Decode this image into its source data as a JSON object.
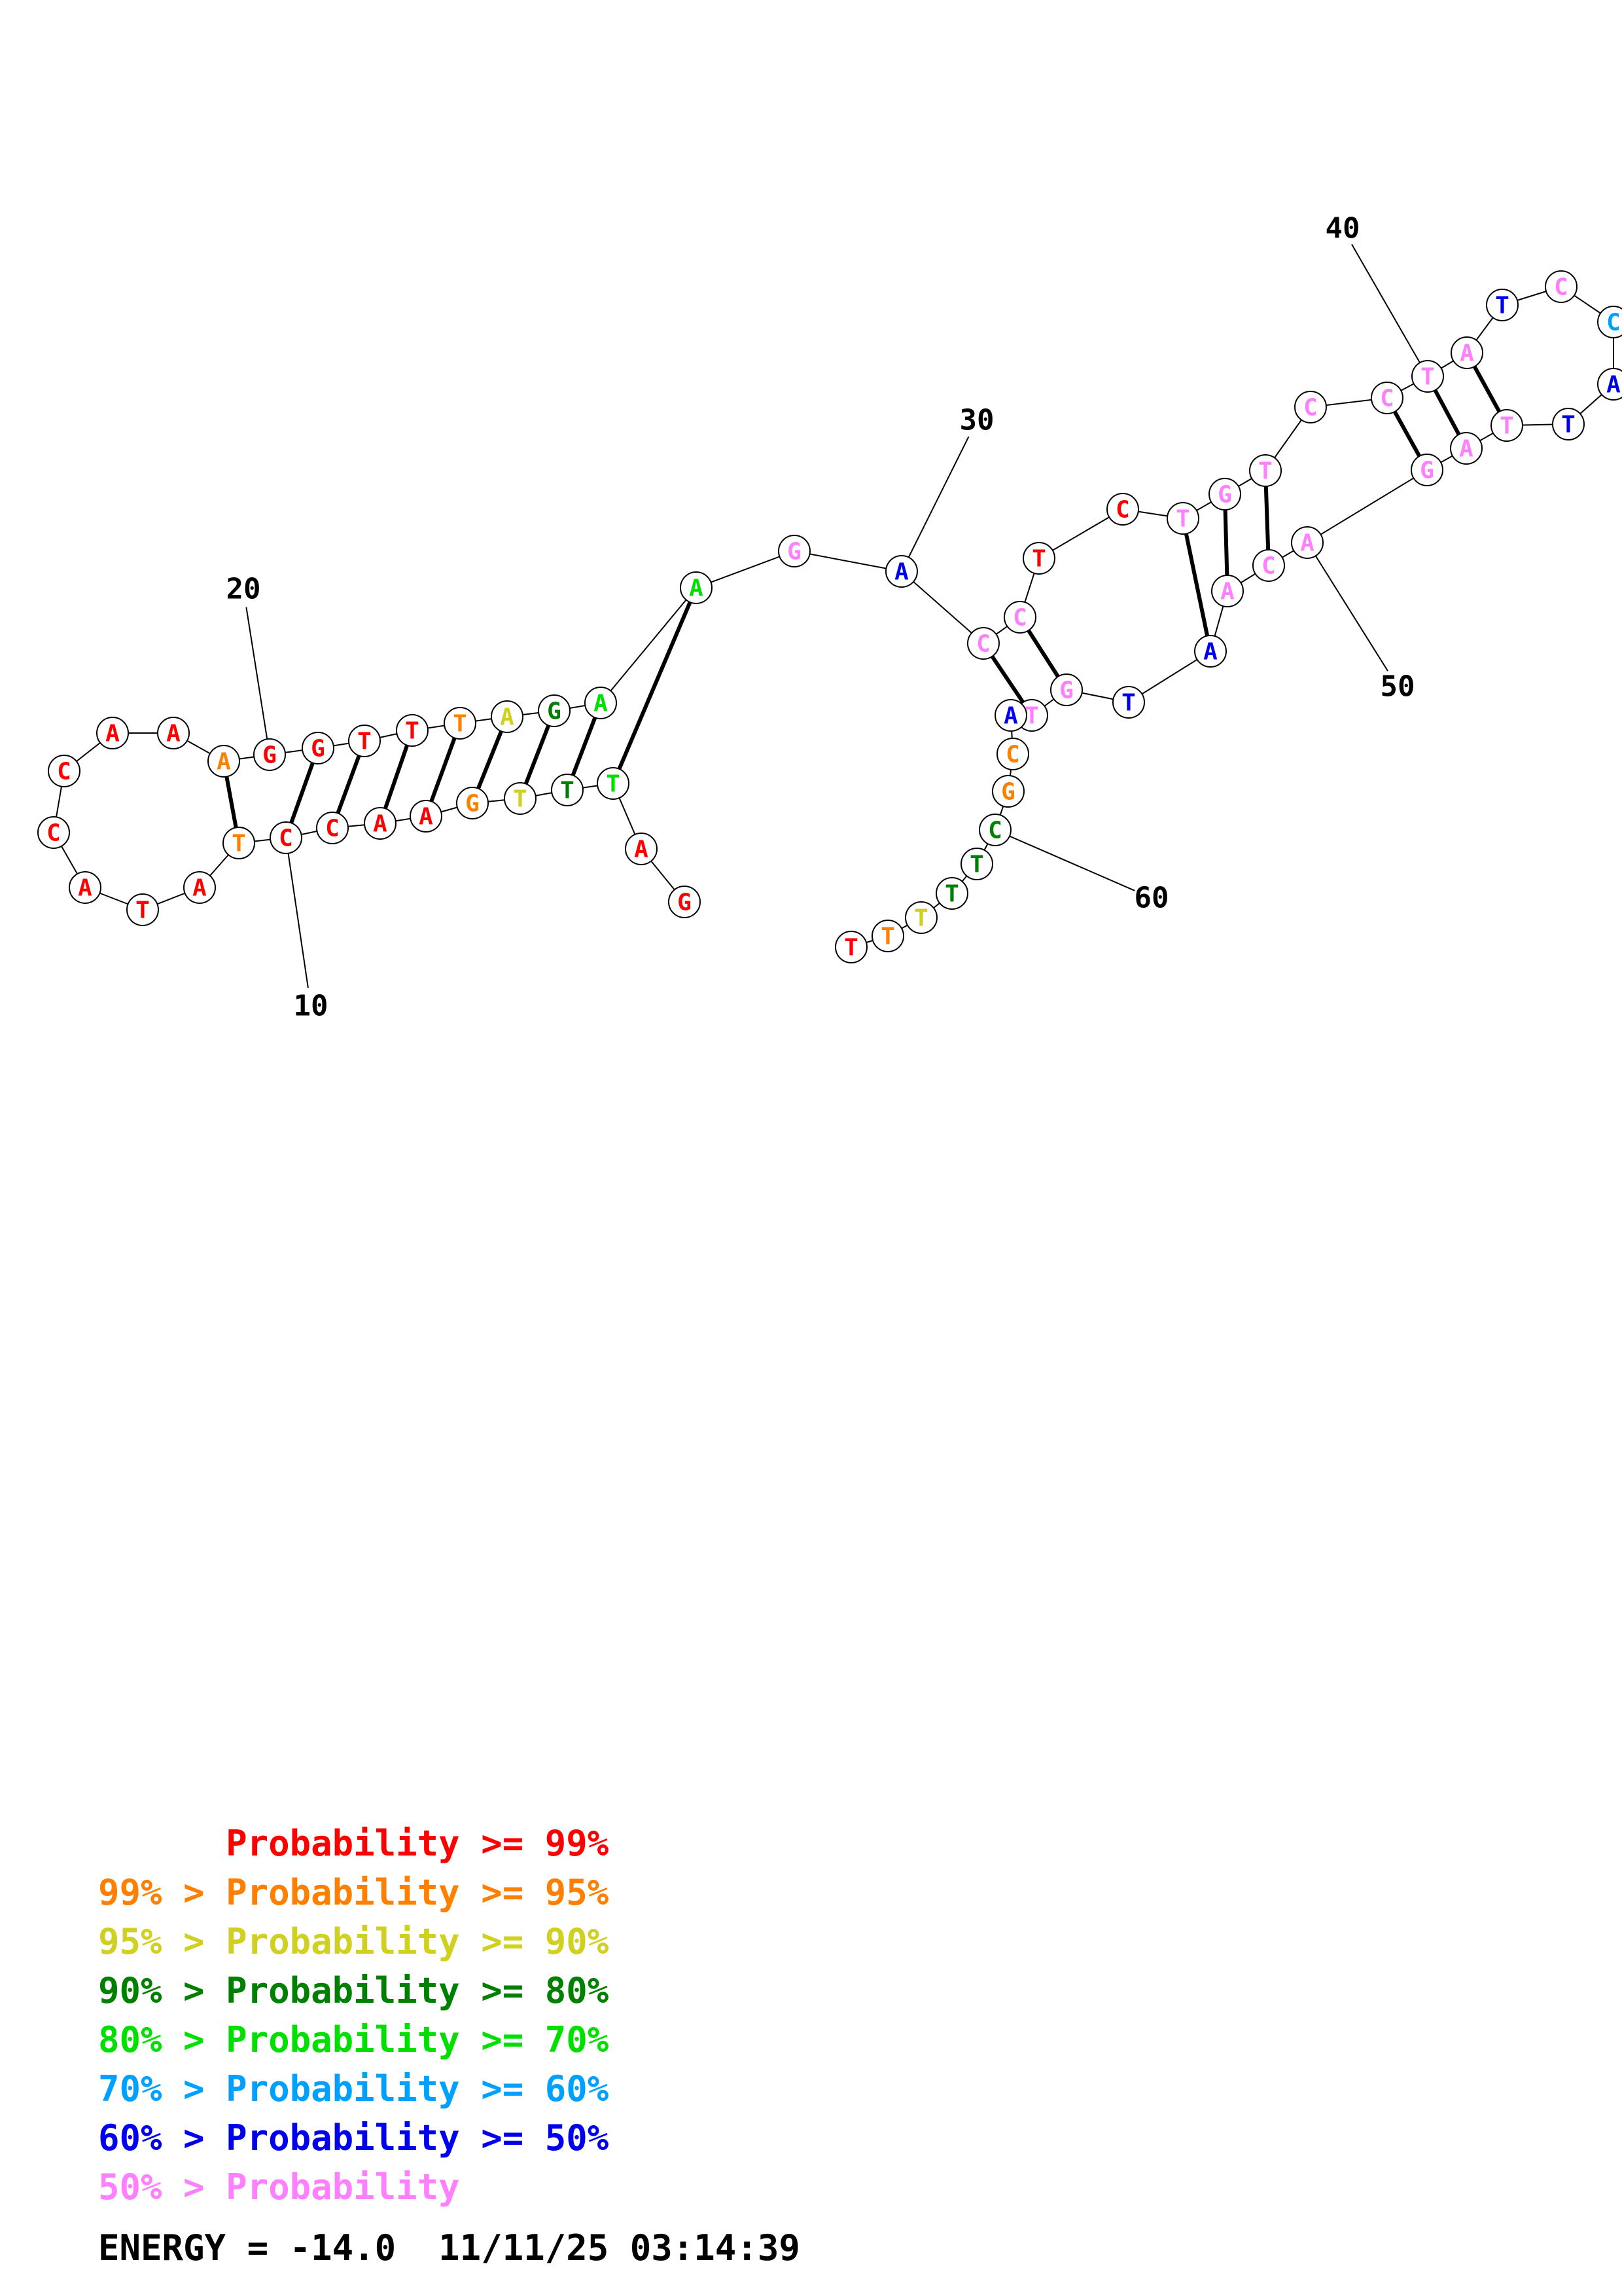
{
  "colors": {
    "p99": "#ff0000",
    "p95": "#ff8000",
    "p90": "#d0d020",
    "p80": "#008000",
    "p70": "#00e000",
    "p60": "#00a0ff",
    "p50": "#0000ee",
    "plt50": "#ff80ff"
  },
  "nucleotides": [
    {
      "idx": 1,
      "base": "G",
      "prob": "p99"
    },
    {
      "idx": 2,
      "base": "A",
      "prob": "p99"
    },
    {
      "idx": 3,
      "base": "T",
      "prob": "p70"
    },
    {
      "idx": 4,
      "base": "T",
      "prob": "p80"
    },
    {
      "idx": 5,
      "base": "T",
      "prob": "p90"
    },
    {
      "idx": 6,
      "base": "G",
      "prob": "p95"
    },
    {
      "idx": 7,
      "base": "A",
      "prob": "p99"
    },
    {
      "idx": 8,
      "base": "A",
      "prob": "p99"
    },
    {
      "idx": 9,
      "base": "C",
      "prob": "p99"
    },
    {
      "idx": 10,
      "base": "C",
      "prob": "p99"
    },
    {
      "idx": 11,
      "base": "T",
      "prob": "p95"
    },
    {
      "idx": 12,
      "base": "A",
      "prob": "p99"
    },
    {
      "idx": 13,
      "base": "T",
      "prob": "p99"
    },
    {
      "idx": 14,
      "base": "A",
      "prob": "p99"
    },
    {
      "idx": 15,
      "base": "C",
      "prob": "p99"
    },
    {
      "idx": 16,
      "base": "C",
      "prob": "p99"
    },
    {
      "idx": 17,
      "base": "A",
      "prob": "p99"
    },
    {
      "idx": 18,
      "base": "A",
      "prob": "p99"
    },
    {
      "idx": 19,
      "base": "A",
      "prob": "p95"
    },
    {
      "idx": 20,
      "base": "G",
      "prob": "p99"
    },
    {
      "idx": 21,
      "base": "G",
      "prob": "p99"
    },
    {
      "idx": 22,
      "base": "T",
      "prob": "p99"
    },
    {
      "idx": 23,
      "base": "T",
      "prob": "p99"
    },
    {
      "idx": 24,
      "base": "T",
      "prob": "p95"
    },
    {
      "idx": 25,
      "base": "A",
      "prob": "p90"
    },
    {
      "idx": 26,
      "base": "G",
      "prob": "p80"
    },
    {
      "idx": 27,
      "base": "A",
      "prob": "p70"
    },
    {
      "idx": 28,
      "base": "A",
      "prob": "p70"
    },
    {
      "idx": 29,
      "base": "G",
      "prob": "plt50"
    },
    {
      "idx": 30,
      "base": "A",
      "prob": "p50"
    },
    {
      "idx": 31,
      "base": "C",
      "prob": "plt50"
    },
    {
      "idx": 32,
      "base": "C",
      "prob": "plt50"
    },
    {
      "idx": 33,
      "base": "T",
      "prob": "p99"
    },
    {
      "idx": 34,
      "base": "C",
      "prob": "p99"
    },
    {
      "idx": 35,
      "base": "T",
      "prob": "plt50"
    },
    {
      "idx": 36,
      "base": "G",
      "prob": "plt50"
    },
    {
      "idx": 37,
      "base": "T",
      "prob": "plt50"
    },
    {
      "idx": 38,
      "base": "C",
      "prob": "plt50"
    },
    {
      "idx": 39,
      "base": "C",
      "prob": "plt50"
    },
    {
      "idx": 40,
      "base": "T",
      "prob": "plt50"
    },
    {
      "idx": 41,
      "base": "A",
      "prob": "plt50"
    },
    {
      "idx": 42,
      "base": "T",
      "prob": "p50"
    },
    {
      "idx": 43,
      "base": "C",
      "prob": "plt50"
    },
    {
      "idx": 44,
      "base": "C",
      "prob": "p60"
    },
    {
      "idx": 45,
      "base": "A",
      "prob": "p50"
    },
    {
      "idx": 46,
      "base": "T",
      "prob": "p50"
    },
    {
      "idx": 47,
      "base": "T",
      "prob": "plt50"
    },
    {
      "idx": 48,
      "base": "A",
      "prob": "plt50"
    },
    {
      "idx": 49,
      "base": "G",
      "prob": "plt50"
    },
    {
      "idx": 50,
      "base": "A",
      "prob": "plt50"
    },
    {
      "idx": 51,
      "base": "C",
      "prob": "plt50"
    },
    {
      "idx": 52,
      "base": "A",
      "prob": "plt50"
    },
    {
      "idx": 53,
      "base": "A",
      "prob": "p50"
    },
    {
      "idx": 54,
      "base": "T",
      "prob": "p50"
    },
    {
      "idx": 55,
      "base": "G",
      "prob": "plt50"
    },
    {
      "idx": 56,
      "base": "T",
      "prob": "plt50"
    },
    {
      "idx": 57,
      "base": "A",
      "prob": "p50"
    },
    {
      "idx": 58,
      "base": "C",
      "prob": "p95"
    },
    {
      "idx": 59,
      "base": "G",
      "prob": "p95"
    },
    {
      "idx": 60,
      "base": "C",
      "prob": "p80"
    },
    {
      "idx": 61,
      "base": "T",
      "prob": "p80"
    },
    {
      "idx": 62,
      "base": "T",
      "prob": "p80"
    },
    {
      "idx": 63,
      "base": "T",
      "prob": "p90"
    },
    {
      "idx": 64,
      "base": "T",
      "prob": "p95"
    },
    {
      "idx": 65,
      "base": "T",
      "prob": "p99"
    }
  ],
  "pairs": [
    [
      3,
      28
    ],
    [
      4,
      27
    ],
    [
      5,
      26
    ],
    [
      6,
      25
    ],
    [
      7,
      24
    ],
    [
      8,
      23
    ],
    [
      9,
      22
    ],
    [
      10,
      21
    ],
    [
      11,
      19
    ],
    [
      31,
      56
    ],
    [
      32,
      55
    ],
    [
      35,
      53
    ],
    [
      36,
      52
    ],
    [
      37,
      51
    ],
    [
      39,
      49
    ],
    [
      40,
      48
    ],
    [
      41,
      47
    ]
  ],
  "position_labels": [
    {
      "text": "10",
      "nt": 10
    },
    {
      "text": "20",
      "nt": 20
    },
    {
      "text": "30",
      "nt": 30
    },
    {
      "text": "40",
      "nt": 40
    },
    {
      "text": "50",
      "nt": 50
    },
    {
      "text": "60",
      "nt": 60
    }
  ],
  "legend": [
    {
      "text": "      Probability >= 99%",
      "color_key": "p99"
    },
    {
      "text": "99% > Probability >= 95%",
      "color_key": "p95"
    },
    {
      "text": "95% > Probability >= 90%",
      "color_key": "p90"
    },
    {
      "text": "90% > Probability >= 80%",
      "color_key": "p80"
    },
    {
      "text": "80% > Probability >= 70%",
      "color_key": "p70"
    },
    {
      "text": "70% > Probability >= 60%",
      "color_key": "p60"
    },
    {
      "text": "60% > Probability >= 50%",
      "color_key": "p50"
    },
    {
      "text": "50% > Probability",
      "color_key": "plt50"
    }
  ],
  "energy_text": "ENERGY = -14.0  11/11/25 03:14:39"
}
